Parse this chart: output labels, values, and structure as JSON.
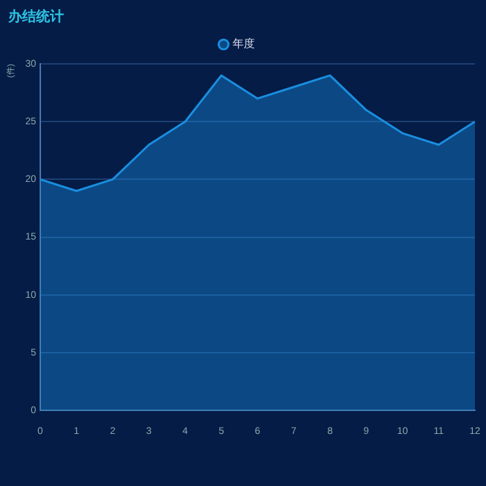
{
  "chart_data": {
    "type": "area",
    "title": "办结统计",
    "ylabel": "(件)",
    "x": [
      0,
      1,
      2,
      3,
      4,
      5,
      6,
      7,
      8,
      9,
      10,
      11,
      12
    ],
    "series": [
      {
        "name": "年度",
        "color": "#1a8ee0",
        "values": [
          20,
          19,
          20,
          23,
          25,
          29,
          27,
          28,
          29,
          26,
          24,
          23,
          25
        ]
      }
    ],
    "xlim": [
      0,
      12
    ],
    "xticks": [
      0,
      1,
      2,
      3,
      4,
      5,
      6,
      7,
      8,
      9,
      10,
      11,
      12
    ],
    "ylim": [
      0,
      30
    ],
    "yticks": [
      0,
      5,
      10,
      15,
      20,
      25,
      30
    ],
    "grid": "y",
    "legend": "top",
    "marker": "none"
  }
}
